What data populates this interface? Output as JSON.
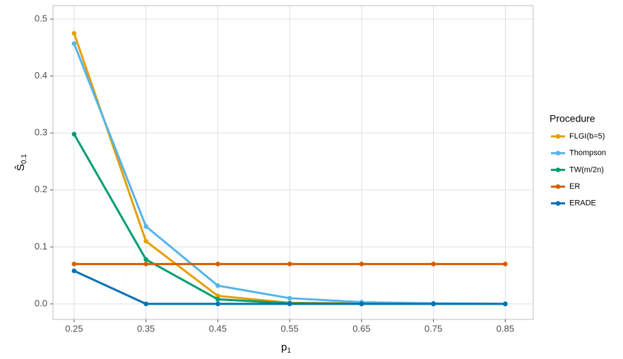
{
  "chart_data": {
    "type": "line",
    "x_label": "p",
    "x_label_sub": "1",
    "y_label": "Ŝ",
    "y_label_sub": "0.1",
    "x": [
      0.25,
      0.35,
      0.45,
      0.55,
      0.65,
      0.75,
      0.85
    ],
    "series": [
      {
        "name": "FLGI(b=5)",
        "color": "#E69F00",
        "values": [
          0.475,
          0.11,
          0.014,
          0.002,
          0.001,
          0.0005,
          0
        ]
      },
      {
        "name": "Thompson",
        "color": "#56B4E9",
        "values": [
          0.457,
          0.136,
          0.032,
          0.01,
          0.003,
          0.001,
          0
        ]
      },
      {
        "name": "TW(m/2n)",
        "color": "#009E73",
        "values": [
          0.298,
          0.078,
          0.008,
          0.001,
          0,
          0,
          0
        ]
      },
      {
        "name": "ER",
        "color": "#D55E00",
        "values": [
          0.07,
          0.07,
          0.07,
          0.07,
          0.07,
          0.07,
          0.07
        ]
      },
      {
        "name": "ERADE",
        "color": "#0072B2",
        "values": [
          0.058,
          0,
          0,
          0,
          0,
          0,
          0
        ]
      }
    ],
    "legend_title": "Procedure",
    "xlim": [
      0.2206,
      0.889
    ],
    "xticks": [
      0.25,
      0.35,
      0.45,
      0.55,
      0.65,
      0.75,
      0.85
    ],
    "ylim": [
      -0.0273,
      0.5236
    ],
    "yticks": [
      {
        "value": 0,
        "label": "0.0"
      },
      0.1,
      0.2,
      0.3,
      0.4,
      0.5
    ],
    "grid": true,
    "legend": "right"
  }
}
